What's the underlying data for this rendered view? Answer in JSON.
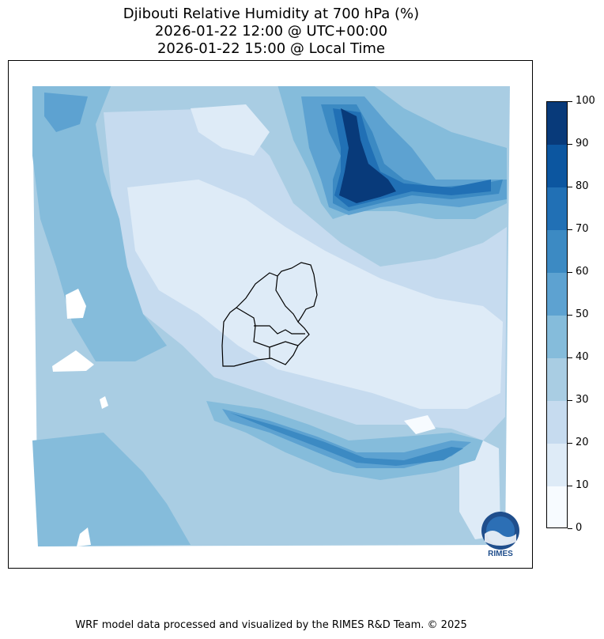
{
  "title": {
    "line1": "Djibouti Relative Humidity at 700 hPa (%)",
    "line2": "2026-01-22 12:00 @ UTC+00:00",
    "line3": "2026-01-22 15:00 @ Local Time"
  },
  "colorbar": {
    "ticks": [
      "0",
      "10",
      "20",
      "30",
      "40",
      "50",
      "60",
      "70",
      "80",
      "90",
      "100"
    ],
    "colors": [
      "#f7fbff",
      "#deebf7",
      "#c6dbef",
      "#a9cde3",
      "#85bcdb",
      "#5da2d1",
      "#3c8ac3",
      "#2170b5",
      "#0c56a0",
      "#083a7a"
    ]
  },
  "logo": {
    "text": "RIMES"
  },
  "footer": "WRF model data processed and visualized by the RIMES R&D Team. © 2025"
}
